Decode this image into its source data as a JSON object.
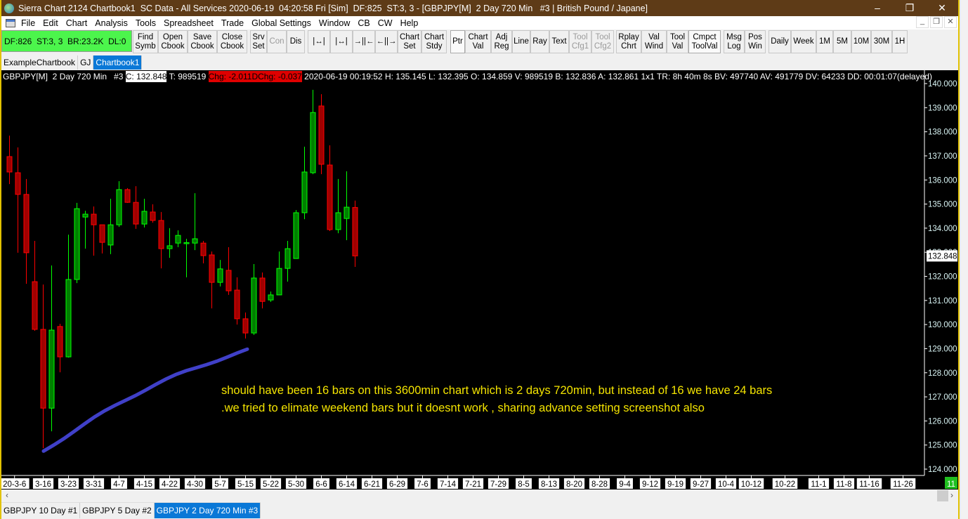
{
  "window": {
    "title": "Sierra Chart 2124 Chartbook1  SC Data - All Services 2020-06-19  04:20:58 Fri [Sim]  DF:825  ST:3, 3 - [GBPJPY[M]  2 Day 720 Min   #3 | British Pound / Japane]",
    "minimize": "–",
    "maximize": "❐",
    "close": "✕"
  },
  "menu": [
    "File",
    "Edit",
    "Chart",
    "Analysis",
    "Tools",
    "Spreadsheet",
    "Trade",
    "Global Settings",
    "Window",
    "CB",
    "CW",
    "Help"
  ],
  "mdi": {
    "minimize": "_",
    "restore": "❐",
    "close": "✕"
  },
  "status_box": "DF:826  ST:3, 3  BR:23.2K  DL:0",
  "toolbar": [
    {
      "label": "Find\nSymb"
    },
    {
      "label": "Open\nCbook"
    },
    {
      "label": "Save\nCbook"
    },
    {
      "label": "Close\nCbook"
    },
    {
      "label": "Srv\nSet"
    },
    {
      "label": "Con",
      "disabled": true
    },
    {
      "label": "Dis"
    },
    {
      "label": "|↔|",
      "icon": "zoom-out-bars-icon"
    },
    {
      "label": "|↔|",
      "icon": "zoom-in-bars-icon"
    },
    {
      "label": "→||←",
      "icon": "compress-bars-icon"
    },
    {
      "label": "←||→",
      "icon": "expand-bars-icon"
    },
    {
      "label": "Chart\nSet"
    },
    {
      "label": "Chart\nStdy"
    },
    {
      "label": "Ptr",
      "active": true
    },
    {
      "label": "Chart\nVal"
    },
    {
      "label": "Adj\nReg"
    },
    {
      "label": "Line"
    },
    {
      "label": "Ray"
    },
    {
      "label": "Text"
    },
    {
      "label": "Tool\nCfg1",
      "disabled": true
    },
    {
      "label": "Tool\nCfg2",
      "disabled": true
    },
    {
      "label": "Rplay\nChrt"
    },
    {
      "label": "Val\nWind"
    },
    {
      "label": "Tool\nVal"
    },
    {
      "label": "Cmpct\nToolVal",
      "active": true
    },
    {
      "label": "Msg\nLog"
    },
    {
      "label": "Pos\nWin"
    },
    {
      "label": "Daily"
    },
    {
      "label": "Week"
    },
    {
      "label": "1M"
    },
    {
      "label": "5M"
    },
    {
      "label": "10M"
    },
    {
      "label": "30M"
    },
    {
      "label": "1H"
    }
  ],
  "chartbook_tabs": [
    {
      "label": "ExampleChartbook"
    },
    {
      "label": "GJ"
    },
    {
      "label": "Chartbook1",
      "active": true
    }
  ],
  "info_line": {
    "symbol": "GBPJPY[M]  2 Day 720 Min   #3 ",
    "close": "C: 132.848",
    "trades": " T: 989519 ",
    "chg": "Chg: -2.011",
    "dchg": "DChg: -0.037",
    "rest": " 2020-06-19 00:19:52 H: 135.145 L: 132.395 O: 134.859 V: 989519 B: 132.836 A: 132.861 1x1 TR: 8h 40m 8s BV: 497740 AV: 491779 DV: 64233 DD: 00:01:07(delayed)"
  },
  "annotation": "should have been 16 bars on this 3600min chart which is 2 days 720min, but instead of 16 we have 24 bars .we tried to elimate weekend bars  but it doesnt work , sharing advance setting screenshot also",
  "bottom_tabs": [
    {
      "label": "GBPJPY  10 Day  #1"
    },
    {
      "label": "GBPJPY  5 Day  #2"
    },
    {
      "label": "GBPJPY  2 Day 720 Min   #3",
      "active": true
    }
  ],
  "scrollbar": {
    "left": "‹",
    "right": "›"
  },
  "colors": {
    "up_fill": "#008000",
    "up_border": "#00ff00",
    "down_fill": "#a00000",
    "down_border": "#ff0000",
    "drawn_line": "#4040c8",
    "annotation": "#f4e400",
    "status_box": "#4cf54c",
    "tab_active": "#0a78d7"
  },
  "chart_data": {
    "type": "candlestick",
    "symbol": "GBPJPY[M]",
    "ylim": [
      124,
      140
    ],
    "y_ticks": [
      "140.000",
      "139.000",
      "138.000",
      "137.000",
      "136.000",
      "135.000",
      "134.000",
      "133.000",
      "132.000",
      "131.000",
      "130.000",
      "129.000",
      "128.000",
      "127.000",
      "126.000",
      "125.000",
      "124.000"
    ],
    "last_price_label": "132.848",
    "x_tick_labels": [
      "20-3-6",
      "3-16",
      "3-23",
      "3-31",
      "4-7",
      "4-15",
      "4-22",
      "4-30",
      "5-7",
      "5-15",
      "5-22",
      "5-30",
      "6-6",
      "6-14",
      "6-21",
      "6-29",
      "7-6",
      "7-14",
      "7-21",
      "7-29",
      "8-5",
      "8-13",
      "8-20",
      "8-28",
      "9-4",
      "9-12",
      "9-19",
      "9-27",
      "10-4",
      "10-12",
      "10-22",
      "11-1",
      "11-8",
      "11-16",
      "11-26"
    ],
    "axis_badge": "11",
    "ohlc": [
      [
        136.97,
        137.84,
        135.83,
        136.33
      ],
      [
        136.3,
        137.35,
        132.98,
        135.4
      ],
      [
        135.4,
        136.04,
        131.69,
        132.98
      ],
      [
        131.78,
        133.47,
        129.74,
        129.8
      ],
      [
        129.8,
        131.66,
        124.87,
        126.53
      ],
      [
        126.53,
        132.45,
        125.57,
        129.77
      ],
      [
        129.92,
        130.03,
        128.02,
        128.66
      ],
      [
        128.66,
        133.73,
        128.63,
        131.87
      ],
      [
        131.87,
        135.05,
        131.72,
        134.81
      ],
      [
        134.46,
        134.72,
        133.15,
        134.58
      ],
      [
        134.58,
        134.9,
        132.86,
        134.14
      ],
      [
        134.14,
        134.14,
        132.95,
        133.41
      ],
      [
        133.3,
        135.22,
        132.92,
        134.14
      ],
      [
        134.14,
        135.95,
        134.05,
        135.6
      ],
      [
        135.6,
        135.66,
        135.05,
        135.07
      ],
      [
        135.07,
        135.74,
        133.97,
        134.17
      ],
      [
        134.17,
        135.22,
        134.03,
        134.7
      ],
      [
        134.67,
        134.99,
        134.23,
        134.32
      ],
      [
        134.32,
        134.67,
        132.33,
        133.15
      ],
      [
        133.15,
        134.0,
        132.77,
        133.27
      ],
      [
        133.38,
        133.91,
        133.21,
        133.7
      ],
      [
        133.39,
        133.56,
        131.96,
        133.4
      ],
      [
        133.38,
        135.45,
        133.09,
        133.56
      ],
      [
        133.38,
        133.47,
        132.54,
        132.86
      ],
      [
        132.89,
        133.03,
        130.67,
        131.75
      ],
      [
        131.75,
        132.68,
        131.58,
        132.31
      ],
      [
        132.25,
        133.21,
        131.23,
        131.4
      ],
      [
        131.43,
        131.96,
        130.0,
        130.24
      ],
      [
        130.24,
        130.5,
        129.42,
        129.65
      ],
      [
        129.65,
        132.51,
        129.57,
        131.93
      ],
      [
        131.93,
        132.16,
        130.67,
        130.96
      ],
      [
        131.02,
        131.37,
        130.94,
        131.23
      ],
      [
        131.23,
        133.03,
        131.23,
        132.33
      ],
      [
        132.33,
        133.47,
        131.78,
        133.15
      ],
      [
        132.74,
        134.75,
        132.74,
        134.64
      ],
      [
        134.64,
        137.38,
        134.37,
        136.33
      ],
      [
        136.3,
        139.74,
        136.24,
        138.8
      ],
      [
        139.07,
        139.56,
        136.24,
        136.65
      ],
      [
        136.62,
        137.44,
        133.88,
        133.94
      ],
      [
        133.94,
        136.04,
        133.79,
        134.64
      ],
      [
        134.4,
        136.36,
        133.5,
        134.87
      ],
      [
        134.859,
        135.145,
        132.395,
        132.848
      ]
    ],
    "drawn_line": {
      "from_price": 124.75,
      "to_price": 129.4
    }
  }
}
